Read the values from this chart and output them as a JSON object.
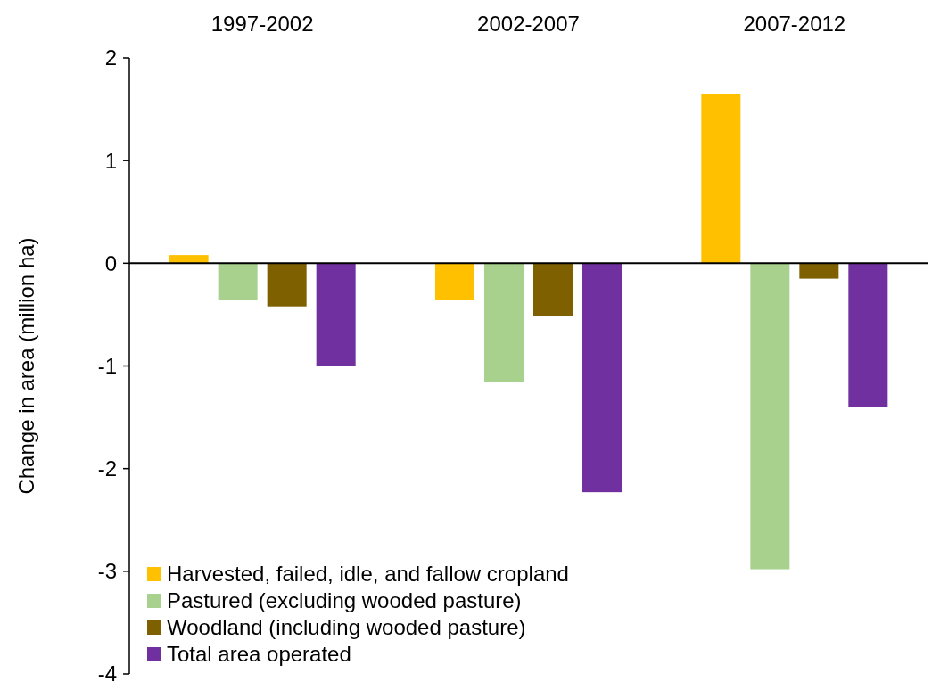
{
  "chart_data": {
    "type": "bar",
    "ylabel": "Change in area (million ha)",
    "categories": [
      "1997-2002",
      "2002-2007",
      "2007-2012"
    ],
    "series": [
      {
        "name": "Harvested, failed, idle, and fallow cropland",
        "color": "#ffc000",
        "values": [
          0.08,
          -0.36,
          1.65
        ]
      },
      {
        "name": "Pastured (excluding wooded pasture)",
        "color": "#a9d18e",
        "values": [
          -0.36,
          -1.16,
          -2.98
        ]
      },
      {
        "name": "Woodland (including wooded pasture)",
        "color": "#7f6000",
        "values": [
          -0.42,
          -0.51,
          -0.15
        ]
      },
      {
        "name": "Total area operated",
        "color": "#7030a0",
        "values": [
          -1.0,
          -2.23,
          -1.4
        ]
      }
    ],
    "ylim": [
      -4,
      2
    ],
    "yticks": [
      -4,
      -3,
      -2,
      -1,
      0,
      1,
      2
    ],
    "legend": "bottom left"
  }
}
